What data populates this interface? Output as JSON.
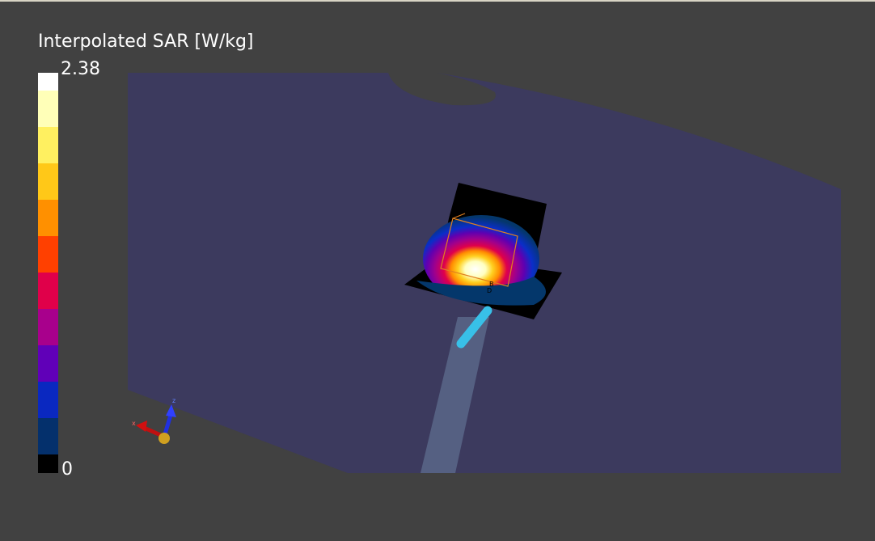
{
  "legend": {
    "title": "Interpolated SAR [W/kg]",
    "max_label": "2.38",
    "min_label": "0"
  },
  "axes_triad": {
    "z_label": "z",
    "x_label": "x"
  },
  "markers": [
    "B",
    "D"
  ]
}
